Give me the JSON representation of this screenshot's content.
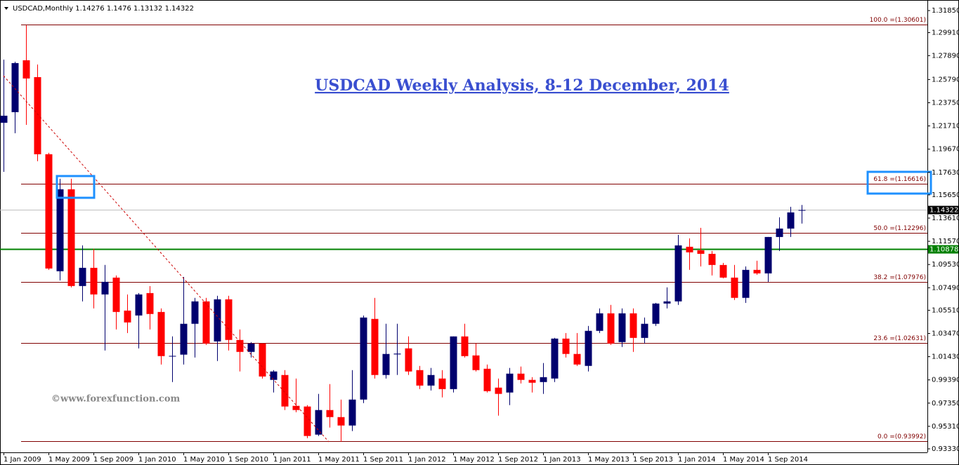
{
  "chart_data": {
    "type": "candlestick",
    "symbol": "USDCAD,Monthly",
    "title": "USDCAD Weekly Analysis, 8-12 December, 2014",
    "watermark": "©www.forexfunction.com",
    "categories": [
      "1 Jan 2009",
      null,
      null,
      null,
      "1 May 2009",
      null,
      null,
      null,
      "1 Sep 2009",
      null,
      null,
      null,
      "1 Jan 2010",
      null,
      null,
      null,
      "1 May 2010",
      null,
      null,
      null,
      "1 Sep 2010",
      null,
      null,
      null,
      "1 Jan 2011",
      null,
      null,
      null,
      "1 May 2011",
      null,
      null,
      null,
      "1 Sep 2011",
      null,
      null,
      null,
      "1 Jan 2012",
      null,
      null,
      null,
      "1 May 2012",
      null,
      null,
      null,
      "1 Sep 2012",
      null,
      null,
      null,
      "1 Jan 2013",
      null,
      null,
      null,
      "1 May 2013",
      null,
      null,
      null,
      "1 Sep 2013",
      null,
      null,
      null,
      "1 Jan 2014",
      null,
      null,
      null,
      "1 May 2014",
      null,
      null,
      null,
      "1 Sep 2014",
      null,
      null,
      null
    ],
    "open": [
      1.2199,
      1.2292,
      1.2748,
      1.26,
      1.1922,
      1.0894,
      1.1614,
      1.0764,
      1.0924,
      1.069,
      1.0838,
      1.0548,
      1.0505,
      1.0702,
      1.0536,
      1.0146,
      1.0161,
      1.0432,
      1.0629,
      1.0277,
      1.0647,
      1.029,
      1.0185,
      1.0259,
      0.9939,
      0.9982,
      0.9711,
      0.9705,
      0.9458,
      0.9674,
      0.9612,
      0.9538,
      0.9766,
      1.0475,
      0.9982,
      1.0163,
      1.0216,
      1.0025,
      0.9889,
      0.9951,
      0.9858,
      1.0321,
      1.0154,
      1.0037,
      0.9871,
      0.9828,
      0.9994,
      0.9939,
      0.992,
      0.9951,
      1.0302,
      1.0167,
      1.0062,
      1.037,
      1.0524,
      1.0271,
      1.0524,
      1.0308,
      1.0432,
      1.061,
      1.0629,
      1.1109,
      1.1078,
      1.1047,
      1.0949,
      1.0838,
      1.066,
      1.0906,
      1.0875,
      1.1195,
      1.1269,
      1.14276
    ],
    "high": [
      1.2754,
      1.2735,
      1.3056,
      1.2711,
      1.1935,
      1.1707,
      1.1707,
      1.1121,
      1.1091,
      1.0949,
      1.0857,
      1.069,
      1.0702,
      1.0764,
      1.0567,
      1.0321,
      1.0844,
      1.066,
      1.066,
      1.0678,
      1.0678,
      1.0382,
      1.0271,
      1.0259,
      1.0025,
      1.0025,
      0.9951,
      0.9717,
      0.9816,
      0.9902,
      0.9766,
      1.0025,
      1.0505,
      1.066,
      1.0432,
      1.0432,
      1.0321,
      1.0062,
      1.0044,
      1.0025,
      1.0321,
      1.0432,
      1.0259,
      1.0074,
      0.9951,
      1.0044,
      1.0056,
      0.9963,
      1.0087,
      1.0308,
      1.0351,
      1.0351,
      1.0413,
      1.0567,
      1.0598,
      1.0567,
      1.0567,
      1.0487,
      1.0616,
      1.0752,
      1.1214,
      1.1183,
      1.1275,
      1.1072,
      1.0967,
      1.0949,
      1.0936,
      1.0986,
      1.1195,
      1.1368,
      1.146,
      1.1476
    ],
    "low": [
      1.1768,
      1.2107,
      1.2181,
      1.1861,
      1.0906,
      1.0813,
      1.0752,
      1.0629,
      1.0567,
      1.0197,
      1.0382,
      1.0351,
      1.0216,
      1.0382,
      1.0074,
      0.992,
      1.0074,
      1.0136,
      1.0247,
      1.0105,
      1.0197,
      1.0013,
      1.0136,
      0.9951,
      0.9828,
      0.9674,
      0.9655,
      0.9427,
      0.9446,
      0.952,
      0.9396,
      0.9489,
      0.9735,
      0.9951,
      0.9951,
      0.9982,
      0.9982,
      0.9858,
      0.9846,
      0.9785,
      0.9828,
      1.0136,
      1.0013,
      0.9828,
      0.9625,
      0.9717,
      0.9908,
      0.9828,
      0.9816,
      0.992,
      1.0136,
      1.0062,
      1.0013,
      1.0351,
      1.0247,
      1.0228,
      1.0185,
      1.0259,
      1.0413,
      1.0567,
      1.0598,
      1.0906,
      1.0936,
      1.0857,
      1.0832,
      1.0641,
      1.0616,
      1.0863,
      1.0801,
      1.1072,
      1.1195,
      1.13132
    ],
    "close": [
      1.2261,
      1.2723,
      1.2588,
      1.1922,
      1.0918,
      1.1614,
      1.0764,
      1.0924,
      1.069,
      1.0801,
      1.0536,
      1.0444,
      1.069,
      1.0518,
      1.0148,
      1.015,
      1.0432,
      1.0629,
      1.0259,
      1.0647,
      1.029,
      1.0185,
      1.0259,
      0.9969,
      1.0013,
      0.9705,
      0.9674,
      0.9446,
      0.9674,
      0.9612,
      0.9538,
      0.9766,
      1.0487,
      0.9982,
      1.0167,
      1.017,
      1.0013,
      0.9889,
      0.9982,
      0.9858,
      1.0321,
      1.0148,
      1.0025,
      0.984,
      0.9816,
      0.9994,
      0.9939,
      0.9914,
      0.9963,
      1.0302,
      1.0167,
      1.0074,
      1.037,
      1.0524,
      1.0259,
      1.0524,
      1.0308,
      1.0432,
      1.061,
      1.0629,
      1.1121,
      1.106,
      1.1047,
      1.0949,
      1.0838,
      1.066,
      1.0906,
      1.0875,
      1.1195,
      1.1269,
      1.1411,
      1.14322
    ],
    "up_color": "#00006e",
    "down_color": "#ff0000",
    "ylim": [
      0.9302,
      1.3247
    ],
    "yticks": [
      {
        "value": 1.3185,
        "label": "1.31850"
      },
      {
        "value": 1.2991,
        "label": "1.29910"
      },
      {
        "value": 1.2789,
        "label": "1.27890"
      },
      {
        "value": 1.2579,
        "label": "1.25790"
      },
      {
        "value": 1.2375,
        "label": "1.23750"
      },
      {
        "value": 1.2171,
        "label": "1.21710"
      },
      {
        "value": 1.1967,
        "label": "1.19670"
      },
      {
        "value": 1.1763,
        "label": "1.17630"
      },
      {
        "value": 1.1565,
        "label": "1.15650"
      },
      {
        "value": 1.1361,
        "label": "1.13610"
      },
      {
        "value": 1.1157,
        "label": "1.11570"
      },
      {
        "value": 1.0953,
        "label": "1.09530"
      },
      {
        "value": 1.0749,
        "label": "1.07490"
      },
      {
        "value": 1.0551,
        "label": "1.05510"
      },
      {
        "value": 1.0347,
        "label": "1.03470"
      },
      {
        "value": 1.0143,
        "label": "1.01430"
      },
      {
        "value": 0.9939,
        "label": "0.99390"
      },
      {
        "value": 0.9735,
        "label": "0.97350"
      },
      {
        "value": 0.9531,
        "label": "0.95310"
      },
      {
        "value": 0.9333,
        "label": "0.93330"
      }
    ],
    "fib_color": "#800000",
    "fib_levels": [
      {
        "value": 1.30601,
        "label": "100.0 =(1.30601)"
      },
      {
        "value": 1.16616,
        "label": "61.8 =(1.16616)"
      },
      {
        "value": 1.12296,
        "label": "50.0 =(1.12296)"
      },
      {
        "value": 1.07976,
        "label": "38.2 =(1.07976)"
      },
      {
        "value": 1.02631,
        "label": "23.6 =(1.02631)"
      },
      {
        "value": 0.93992,
        "label": "0.0 =(0.93992)"
      }
    ],
    "support_level": 1.10878,
    "support_color": "#008000"
  }
}
